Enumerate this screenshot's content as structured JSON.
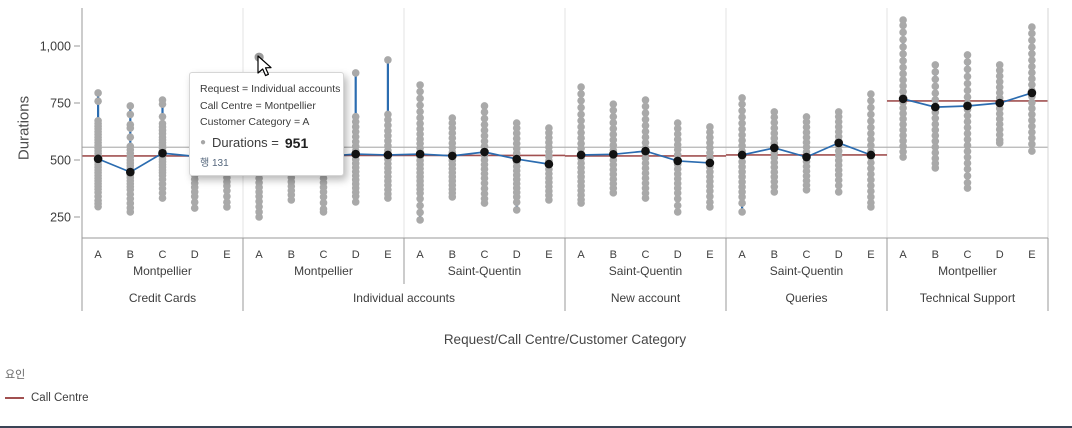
{
  "tooltip": {
    "line1": "Request = Individual accounts",
    "line2": "Call Centre = Montpellier",
    "line3": "Customer Category = A",
    "bullet": "●",
    "value_label": "Durations =",
    "value": "951",
    "row_label": "행 131"
  },
  "legend": {
    "title": "요인",
    "items": [
      {
        "label": "Call Centre",
        "color": "#A15050"
      }
    ]
  },
  "colors": {
    "dot_gray": "#a9a9a9",
    "mean_black": "#121212",
    "line_blue": "#2b6cb0",
    "factor_red": "#A15050",
    "reference_gray": "#b4b4b4",
    "gridline": "#e3e3e3",
    "axis": "#9a9a9a",
    "axis_light": "#d6d6d6",
    "text": "#3d3d3d"
  },
  "chart_data": {
    "type": "scatter",
    "subtype": "dot-strip-with-means",
    "y_axis": {
      "label": "Durations",
      "tick_values": [
        1000,
        750,
        500,
        250
      ],
      "tick_labels": [
        "1,000",
        "750",
        "500",
        "250"
      ],
      "range": [
        150,
        1160
      ],
      "grid": false
    },
    "x_axis": {
      "label": "Request/Call Centre/Customer Category"
    },
    "reference_line_value": 556,
    "legend_position": "bottom-left",
    "categories": [
      "A",
      "B",
      "C",
      "D",
      "E"
    ],
    "highlight_point": {
      "request": "Individual accounts",
      "call_centre": "Montpellier",
      "category": "A",
      "value": 951
    },
    "groups": [
      {
        "request": "Credit Cards",
        "factor_line_value": 518,
        "panels": [
          {
            "call_centre": "Montpellier",
            "means": [
              505,
              447,
              530,
              516,
              520
            ],
            "dots": [
              [
                794,
                758,
                672,
                660,
                648,
                636,
                624,
                612,
                600,
                588,
                576,
                564,
                552,
                540,
                528,
                516,
                504,
                492,
                480,
                468,
                456,
                444,
                432,
                420,
                408,
                396,
                384,
                372,
                358,
                340,
                322,
                308,
                295
              ],
              [
                737,
                700,
                655,
                640,
                600,
                560,
                545,
                530,
                515,
                500,
                487,
                474,
                461,
                448,
                435,
                422,
                409,
                396,
                383,
                370,
                350,
                330,
                310,
                290,
                272
              ],
              [
                763,
                745,
                690,
                660,
                645,
                630,
                615,
                600,
                588,
                576,
                564,
                552,
                540,
                528,
                516,
                504,
                492,
                480,
                468,
                456,
                444,
                432,
                415,
                395,
                375,
                355,
                333
              ],
              [
                740,
                700,
                660,
                630,
                605,
                580,
                560,
                540,
                522,
                505,
                488,
                470,
                452,
                434,
                416,
                398,
                380,
                360,
                340,
                315,
                289
              ],
              [
                785,
                750,
                700,
                665,
                640,
                615,
                592,
                570,
                550,
                530,
                512,
                494,
                476,
                458,
                440,
                422,
                404,
                386,
                365,
                340,
                315,
                294
              ]
            ]
          }
        ]
      },
      {
        "request": "Individual accounts",
        "factor_line_value": 520,
        "panels": [
          {
            "call_centre": "Montpellier",
            "means": [
              520,
              510,
              515,
              526,
              522
            ],
            "dots": [
              [
                951,
                740,
                700,
                665,
                635,
                610,
                585,
                562,
                540,
                520,
                500,
                480,
                460,
                440,
                420,
                400,
                380,
                360,
                340,
                318,
                295,
                272,
                250
              ],
              [
                740,
                705,
                670,
                640,
                612,
                586,
                562,
                540,
                519,
                499,
                480,
                461,
                442,
                423,
                404,
                385,
                366,
                347,
                325
              ],
              [
                760,
                725,
                688,
                655,
                625,
                597,
                571,
                547,
                524,
                502,
                481,
                460,
                440,
                420,
                400,
                380,
                360,
                338,
                312,
                285,
                272
              ],
              [
                882,
                690,
                668,
                646,
                624,
                602,
                580,
                560,
                540,
                521,
                503,
                485,
                467,
                449,
                431,
                413,
                395,
                377,
                359,
                341,
                316
              ],
              [
                939,
                700,
                676,
                652,
                628,
                606,
                584,
                562,
                542,
                522,
                503,
                484,
                465,
                446,
                427,
                408,
                389,
                370,
                351,
                333
              ]
            ]
          },
          {
            "call_centre": "Saint-Quentin",
            "means": [
              526,
              518,
              535,
              504,
              482
            ],
            "dots": [
              [
                829,
                800,
                770,
                740,
                712,
                685,
                660,
                636,
                614,
                592,
                572,
                552,
                534,
                516,
                498,
                480,
                462,
                444,
                426,
                408,
                390,
                372,
                354,
                330,
                300,
                270,
                237
              ],
              [
                684,
                662,
                640,
                618,
                596,
                574,
                554,
                534,
                516,
                498,
                480,
                462,
                444,
                426,
                408,
                390,
                372,
                355,
                338
              ],
              [
                737,
                710,
                682,
                655,
                630,
                606,
                582,
                560,
                540,
                520,
                500,
                480,
                460,
                440,
                420,
                398,
                375,
                352,
                330,
                311
              ],
              [
                662,
                640,
                617,
                594,
                572,
                550,
                530,
                510,
                491,
                472,
                453,
                434,
                415,
                396,
                377,
                358,
                338,
                315,
                281
              ],
              [
                640,
                619,
                598,
                577,
                556,
                536,
                516,
                497,
                478,
                459,
                440,
                421,
                402,
                383,
                364,
                345,
                325
              ]
            ]
          }
        ]
      },
      {
        "request": "New account",
        "factor_line_value": 518,
        "panels": [
          {
            "call_centre": "Saint-Quentin",
            "means": [
              522,
              525,
              539,
              496,
              487
            ],
            "dots": [
              [
                820,
                790,
                760,
                730,
                700,
                672,
                645,
                620,
                596,
                572,
                550,
                528,
                507,
                486,
                466,
                446,
                426,
                406,
                386,
                366,
                346,
                326,
                311
              ],
              [
                745,
                718,
                690,
                663,
                637,
                612,
                588,
                565,
                543,
                521,
                500,
                479,
                458,
                437,
                416,
                396,
                376,
                356
              ],
              [
                763,
                735,
                706,
                678,
                651,
                625,
                600,
                576,
                553,
                530,
                508,
                486,
                464,
                442,
                420,
                398,
                376,
                354,
                333
              ],
              [
                662,
                638,
                614,
                590,
                567,
                545,
                523,
                502,
                481,
                460,
                439,
                418,
                397,
                376,
                355,
                330,
                300,
                272
              ],
              [
                645,
                622,
                599,
                576,
                554,
                532,
                511,
                490,
                469,
                448,
                427,
                406,
                385,
                364,
                340,
                315,
                294
              ]
            ]
          }
        ]
      },
      {
        "request": "Queries",
        "factor_line_value": 522,
        "panels": [
          {
            "call_centre": "Saint-Quentin",
            "means": [
              522,
              553,
              513,
              575,
              522
            ],
            "dots": [
              [
                772,
                745,
                716,
                688,
                661,
                635,
                610,
                586,
                562,
                538,
                515,
                492,
                470,
                448,
                426,
                404,
                382,
                360,
                338,
                311,
                272
              ],
              [
                711,
                688,
                664,
                640,
                617,
                595,
                573,
                552,
                531,
                510,
                489,
                468,
                447,
                426,
                405,
                383,
                360
              ],
              [
                689,
                667,
                644,
                621,
                599,
                577,
                556,
                535,
                514,
                493,
                472,
                451,
                430,
                409,
                389,
                369
              ],
              [
                711,
                690,
                668,
                646,
                624,
                603,
                582,
                561,
                540,
                519,
                498,
                477,
                456,
                435,
                412,
                388,
                360
              ],
              [
                789,
                760,
                730,
                700,
                671,
                643,
                616,
                590,
                564,
                538,
                513,
                488,
                463,
                438,
                413,
                388,
                363,
                338,
                313,
                294
              ]
            ]
          }
        ]
      },
      {
        "request": "Technical Support",
        "factor_line_value": 759,
        "panels": [
          {
            "call_centre": "Montpellier",
            "means": [
              768,
              732,
              737,
              750,
              794
            ],
            "dots": [
              [
                1114,
                1090,
                1060,
                1028,
                996,
                965,
                935,
                906,
                878,
                851,
                825,
                800,
                776,
                752,
                728,
                704,
                680,
                656,
                632,
                608,
                584,
                560,
                536,
                513
              ],
              [
                917,
                886,
                854,
                823,
                793,
                764,
                736,
                709,
                683,
                657,
                632,
                607,
                582,
                557,
                532,
                507,
                485,
                465
              ],
              [
                961,
                930,
                898,
                866,
                835,
                805,
                776,
                748,
                721,
                694,
                668,
                642,
                616,
                590,
                564,
                538,
                512,
                486,
                460,
                430,
                400,
                377
              ],
              [
                917,
                893,
                868,
                843,
                819,
                795,
                772,
                749,
                726,
                703,
                680,
                657,
                634,
                611,
                588,
                575
              ],
              [
                1083,
                1055,
                1025,
                995,
                966,
                938,
                910,
                883,
                856,
                830,
                804,
                778,
                752,
                726,
                700,
                674,
                648,
                622,
                596,
                570,
                539
              ]
            ]
          }
        ]
      }
    ]
  }
}
